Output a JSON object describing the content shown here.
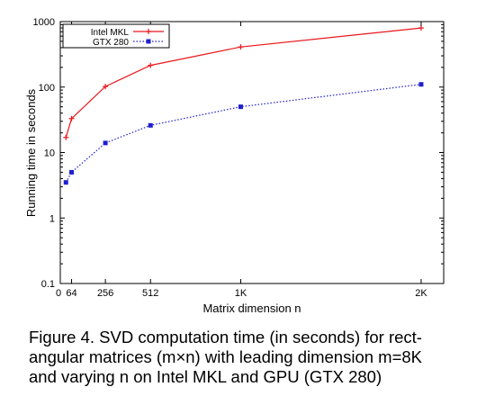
{
  "chart_data": {
    "type": "line",
    "xlabel": "Matrix dimension n",
    "ylabel": "Running time in seconds",
    "x_ticks": [
      {
        "value": 0,
        "label": "0"
      },
      {
        "value": 64,
        "label": "64"
      },
      {
        "value": 256,
        "label": "256"
      },
      {
        "value": 512,
        "label": "512"
      },
      {
        "value": 1024,
        "label": "1K"
      },
      {
        "value": 2048,
        "label": "2K"
      }
    ],
    "y_ticks": [
      {
        "value": 0.1,
        "label": "0.1"
      },
      {
        "value": 1,
        "label": "1"
      },
      {
        "value": 10,
        "label": "10"
      },
      {
        "value": 100,
        "label": "100"
      },
      {
        "value": 1000,
        "label": "1000"
      }
    ],
    "xlim": [
      0,
      2176
    ],
    "ylim": [
      0.1,
      1000
    ],
    "y_scale": "log",
    "grid": false,
    "legend_position": "top-left",
    "series": [
      {
        "name": "Intel MKL",
        "color": "#e8161c",
        "line_style": "solid",
        "marker": "plus",
        "points": [
          [
            32,
            17
          ],
          [
            64,
            33
          ],
          [
            256,
            102
          ],
          [
            512,
            215
          ],
          [
            1024,
            410
          ],
          [
            2048,
            800
          ]
        ]
      },
      {
        "name": "GTX 280",
        "color": "#1f1fd0",
        "line_style": "dotted",
        "marker": "filled-square",
        "points": [
          [
            32,
            3.5
          ],
          [
            64,
            5
          ],
          [
            256,
            14
          ],
          [
            512,
            26
          ],
          [
            1024,
            50
          ],
          [
            2048,
            110
          ]
        ]
      }
    ]
  },
  "caption": {
    "lines": [
      "Figure 4.  SVD computation time (in seconds) for rect-",
      "angular matrices (m×n) with leading dimension m=8K",
      "and varying n on Intel MKL and GPU (GTX 280)"
    ]
  }
}
